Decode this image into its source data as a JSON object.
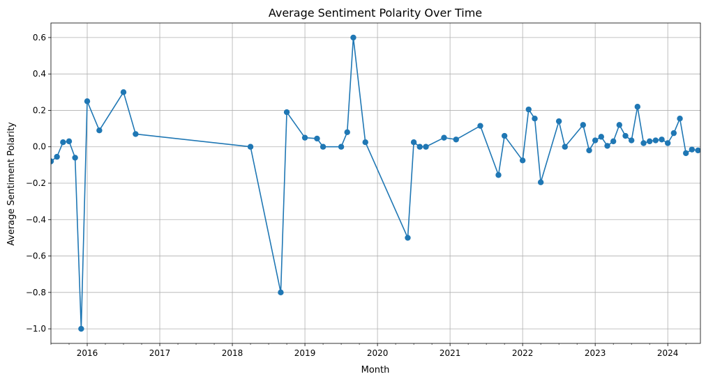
{
  "chart_data": {
    "type": "line",
    "title": "Average Sentiment Polarity Over Time",
    "xlabel": "Month",
    "ylabel": "Average Sentiment Polarity",
    "xlim": [
      2015.5,
      2024.45
    ],
    "ylim": [
      -1.08,
      0.68
    ],
    "grid": true,
    "x_ticks": [
      {
        "value": 2016,
        "label": "2016"
      },
      {
        "value": 2017,
        "label": "2017"
      },
      {
        "value": 2018,
        "label": "2018"
      },
      {
        "value": 2019,
        "label": "2019"
      },
      {
        "value": 2020,
        "label": "2020"
      },
      {
        "value": 2021,
        "label": "2021"
      },
      {
        "value": 2022,
        "label": "2022"
      },
      {
        "value": 2023,
        "label": "2023"
      },
      {
        "value": 2024,
        "label": "2024"
      }
    ],
    "y_ticks": [
      {
        "value": 0.6,
        "label": "0.6"
      },
      {
        "value": 0.4,
        "label": "0.4"
      },
      {
        "value": 0.2,
        "label": "0.2"
      },
      {
        "value": 0.0,
        "label": "0.0"
      },
      {
        "value": -0.2,
        "label": "−0.2"
      },
      {
        "value": -0.4,
        "label": "−0.4"
      },
      {
        "value": -0.6,
        "label": "−0.6"
      },
      {
        "value": -0.8,
        "label": "−0.8"
      },
      {
        "value": -1.0,
        "label": "−1.0"
      }
    ],
    "series": [
      {
        "name": "Average Sentiment Polarity",
        "color": "#1f77b4",
        "marker": "circle",
        "x": [
          2015.5,
          2015.583,
          2015.667,
          2015.75,
          2015.833,
          2015.917,
          2016.0,
          2016.167,
          2016.5,
          2016.667,
          2018.25,
          2018.667,
          2018.75,
          2019.0,
          2019.167,
          2019.25,
          2019.5,
          2019.583,
          2019.667,
          2019.833,
          2020.417,
          2020.5,
          2020.583,
          2020.667,
          2020.917,
          2021.083,
          2021.417,
          2021.667,
          2021.75,
          2022.0,
          2022.083,
          2022.167,
          2022.25,
          2022.5,
          2022.583,
          2022.833,
          2022.917,
          2023.0,
          2023.083,
          2023.167,
          2023.25,
          2023.333,
          2023.417,
          2023.5,
          2023.583,
          2023.667,
          2023.75,
          2023.833,
          2023.917,
          2024.0,
          2024.083,
          2024.167,
          2024.25,
          2024.333,
          2024.417
        ],
        "y": [
          -0.08,
          -0.055,
          0.025,
          0.03,
          -0.06,
          -1.0,
          0.25,
          0.09,
          0.3,
          0.07,
          0.0,
          -0.8,
          0.19,
          0.05,
          0.045,
          0.0,
          0.0,
          0.08,
          0.6,
          0.025,
          -0.5,
          0.025,
          0.0,
          0.0,
          0.05,
          0.04,
          0.115,
          -0.155,
          0.06,
          -0.075,
          0.205,
          0.155,
          -0.195,
          0.14,
          0.0,
          0.12,
          -0.02,
          0.035,
          0.055,
          0.005,
          0.03,
          0.12,
          0.06,
          0.035,
          0.22,
          0.02,
          0.03,
          0.035,
          0.04,
          0.02,
          0.075,
          0.155,
          -0.035,
          -0.015,
          -0.02
        ]
      }
    ]
  }
}
